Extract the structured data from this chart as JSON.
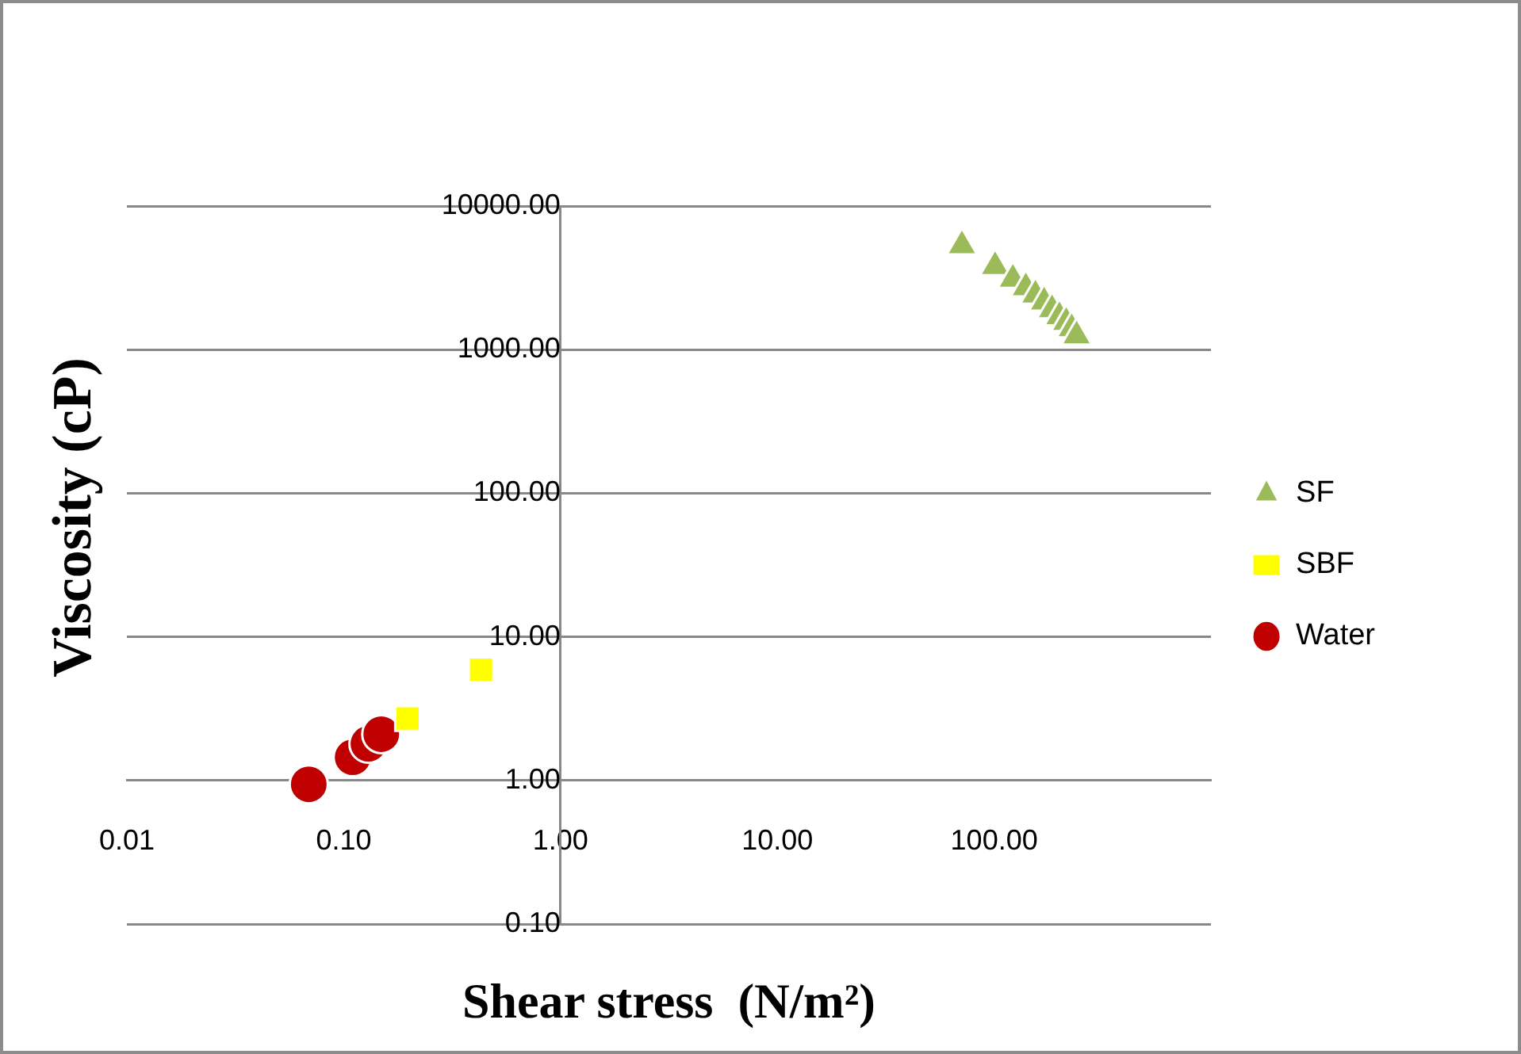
{
  "chart_data": {
    "type": "scatter",
    "xlabel": "Shear stress  (N/m²)",
    "ylabel": "Viscosity (cP)",
    "log": "xy",
    "grid": "y",
    "legend": "right",
    "xlim": [
      0.01,
      1000
    ],
    "xticks": [
      {
        "value": 0.01,
        "label": "0.01"
      },
      {
        "value": 0.1,
        "label": "0.10"
      },
      {
        "value": 1,
        "label": "1.00"
      },
      {
        "value": 10,
        "label": "10.00"
      },
      {
        "value": 100,
        "label": "100.00"
      }
    ],
    "ylim": [
      0.1,
      10000
    ],
    "yticks": [
      {
        "value": 0.1,
        "label": "0.10"
      },
      {
        "value": 1,
        "label": "1.00"
      },
      {
        "value": 10,
        "label": "10.00"
      },
      {
        "value": 100,
        "label": "100.00"
      },
      {
        "value": 1000,
        "label": "1000.00"
      },
      {
        "value": 10000,
        "label": "10000.00"
      }
    ],
    "series": [
      {
        "name": "SF",
        "color": "#9bbb59",
        "marker": "triangle",
        "x": [
          71,
          101,
          122,
          140,
          155,
          170,
          185,
          200,
          215,
          228,
          240
        ],
        "values": [
          5300,
          3800,
          3100,
          2700,
          2400,
          2150,
          1900,
          1700,
          1550,
          1400,
          1250
        ]
      },
      {
        "name": "SBF",
        "color": "#ffff00",
        "marker": "square",
        "x": [
          0.197,
          0.43
        ],
        "values": [
          2.7,
          5.9
        ]
      },
      {
        "name": "Water",
        "color": "#c00000",
        "marker": "circle",
        "x": [
          0.069,
          0.11,
          0.13,
          0.149
        ],
        "values": [
          0.94,
          1.45,
          1.8,
          2.1
        ]
      }
    ]
  }
}
